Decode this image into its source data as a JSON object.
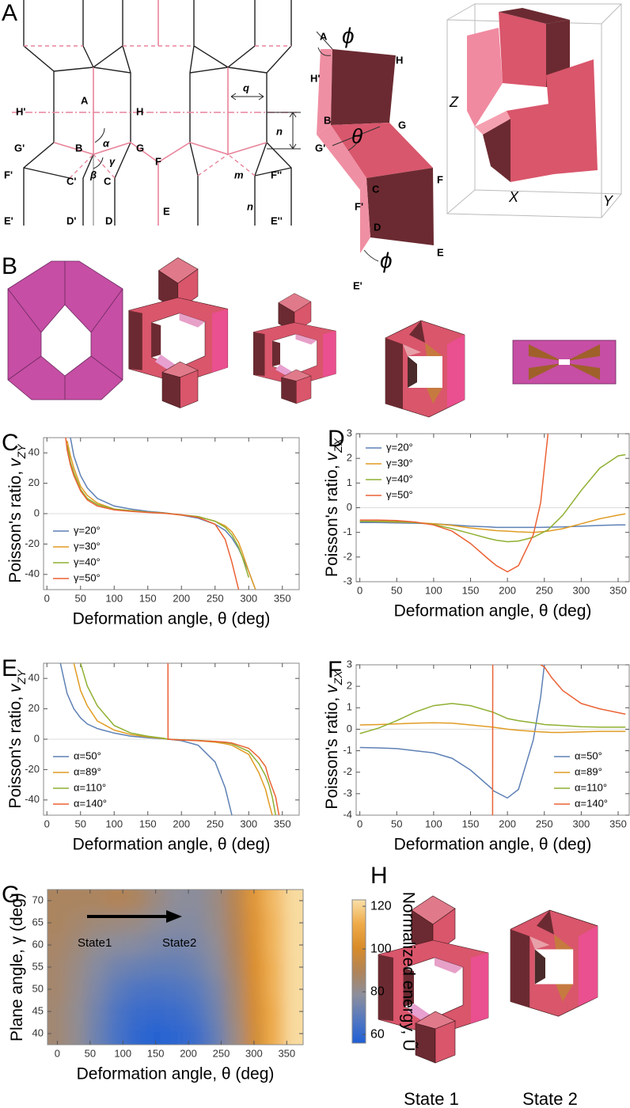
{
  "panel_letters": [
    "A",
    "B",
    "H"
  ],
  "panel_A": {
    "schematic_labels": [
      "A",
      "H'",
      "H",
      "G'",
      "B",
      "G",
      "F'",
      "C'",
      "C",
      "F",
      "F''",
      "E'",
      "D'",
      "D",
      "E",
      "E''",
      "q",
      "n",
      "m",
      "n",
      "α",
      "β",
      "γ"
    ],
    "fold_labels": [
      "A",
      "ϕ",
      "H",
      "H'",
      "B",
      "G",
      "G'",
      "θ",
      "F",
      "C",
      "F'",
      "D",
      "E",
      "ϕ",
      "E'"
    ],
    "axis_labels": [
      "Z",
      "X",
      "Y"
    ]
  },
  "panel_H": {
    "labels": [
      "State 1",
      "State 2"
    ]
  },
  "chart_data": [
    {
      "type": "line",
      "panel": "C",
      "x_label": "Deformation angle, θ (deg)",
      "y_label": "Poisson's ratio,",
      "y_label_var": "v",
      "y_label_sub": "ZY",
      "xlim": [
        -5,
        375
      ],
      "ylim": [
        -50,
        50
      ],
      "xticks": [
        0,
        50,
        100,
        150,
        200,
        250,
        300,
        350
      ],
      "yticks": [
        -40,
        -20,
        0,
        20,
        40
      ],
      "zero_line": true,
      "legend": "lower left",
      "x": [
        28,
        30,
        35,
        40,
        50,
        60,
        75,
        100,
        125,
        150,
        175,
        200,
        225,
        250,
        265,
        275,
        285,
        290,
        300,
        310
      ],
      "series": [
        {
          "name": "γ=20°",
          "color": "#5e81b5",
          "values": [
            null,
            null,
            50,
            38,
            25,
            17,
            10,
            5,
            3,
            1.5,
            0.5,
            -1,
            -3,
            -7,
            -11,
            -16,
            -23,
            -28,
            -38,
            -50
          ]
        },
        {
          "name": "γ=30°",
          "color": "#e19c24",
          "values": [
            null,
            48,
            38,
            30,
            18,
            12,
            7,
            3,
            2,
            1,
            0.3,
            -1,
            -2,
            -5,
            -8,
            -12,
            -19,
            -25,
            -38,
            -50
          ]
        },
        {
          "name": "γ=40°",
          "color": "#8fb032",
          "values": [
            null,
            45,
            34,
            27,
            16,
            10,
            6,
            3,
            2,
            1,
            0.3,
            -0.8,
            -2,
            -5,
            -9,
            -14,
            -22,
            -28,
            -42,
            null
          ]
        },
        {
          "name": "γ=50°",
          "color": "#eb6235",
          "values": [
            50,
            42,
            32,
            25,
            15,
            9,
            5,
            2.5,
            1.5,
            0.8,
            0.2,
            -0.8,
            -2.5,
            -7,
            -17,
            -32,
            -50,
            null,
            null,
            null
          ]
        }
      ]
    },
    {
      "type": "line",
      "panel": "D",
      "x_label": "Deformation angle, θ (deg)",
      "y_label": "Poisson's ratio,",
      "y_label_var": "v",
      "y_label_sub": "ZX",
      "xlim": [
        -5,
        365
      ],
      "ylim": [
        -3,
        3
      ],
      "xticks": [
        0,
        50,
        100,
        150,
        200,
        250,
        300,
        350
      ],
      "yticks": [
        -3,
        -2,
        -1,
        0,
        1,
        2,
        3
      ],
      "zero_line": true,
      "legend": "upper left",
      "x": [
        0,
        25,
        50,
        75,
        100,
        125,
        150,
        175,
        185,
        200,
        215,
        235,
        245,
        255,
        275,
        300,
        325,
        350,
        360
      ],
      "series": [
        {
          "name": "γ=20°",
          "color": "#5e81b5",
          "values": [
            -0.6,
            -0.6,
            -0.62,
            -0.63,
            -0.65,
            -0.7,
            -0.75,
            -0.78,
            -0.8,
            -0.8,
            -0.8,
            -0.8,
            -0.8,
            -0.79,
            -0.78,
            -0.75,
            -0.72,
            -0.7,
            -0.7
          ]
        },
        {
          "name": "γ=30°",
          "color": "#e19c24",
          "values": [
            -0.55,
            -0.56,
            -0.58,
            -0.6,
            -0.65,
            -0.72,
            -0.82,
            -0.9,
            -0.93,
            -0.95,
            -0.98,
            -1.0,
            -0.98,
            -0.95,
            -0.85,
            -0.65,
            -0.45,
            -0.3,
            -0.25
          ]
        },
        {
          "name": "γ=40°",
          "color": "#8fb032",
          "values": [
            -0.55,
            -0.55,
            -0.56,
            -0.6,
            -0.68,
            -0.85,
            -1.05,
            -1.25,
            -1.32,
            -1.38,
            -1.35,
            -1.2,
            -1.05,
            -0.9,
            -0.3,
            0.7,
            1.6,
            2.1,
            2.15
          ]
        },
        {
          "name": "γ=50°",
          "color": "#eb6235",
          "values": [
            -0.5,
            -0.5,
            -0.52,
            -0.58,
            -0.7,
            -0.95,
            -1.45,
            -2.1,
            -2.35,
            -2.6,
            -2.35,
            -1.1,
            0.2,
            3,
            null,
            null,
            null,
            null,
            null
          ]
        }
      ]
    },
    {
      "type": "line",
      "panel": "E",
      "x_label": "Deformation angle, θ (deg)",
      "y_label": "Poisson's ratio,",
      "y_label_var": "v",
      "y_label_sub": "ZY",
      "xlim": [
        -5,
        375
      ],
      "ylim": [
        -50,
        50
      ],
      "xticks": [
        0,
        50,
        100,
        150,
        200,
        250,
        300,
        350
      ],
      "yticks": [
        -40,
        -20,
        0,
        20,
        40
      ],
      "zero_line": true,
      "legend": "lower left",
      "x": [
        20,
        30,
        40,
        50,
        60,
        75,
        100,
        125,
        150,
        175,
        179.9,
        180.1,
        200,
        225,
        250,
        265,
        275,
        300,
        315,
        325,
        330,
        335,
        340,
        345
      ],
      "series": [
        {
          "name": "α=50°",
          "color": "#5e81b5",
          "values": [
            50,
            30,
            20,
            14,
            10,
            7,
            4,
            2,
            1,
            0.2,
            0,
            0,
            -1,
            -4,
            -15,
            -32,
            -50,
            null,
            null,
            null,
            null,
            null,
            null,
            null
          ]
        },
        {
          "name": "α=89°",
          "color": "#e19c24",
          "values": [
            null,
            null,
            50,
            32,
            22,
            12,
            6,
            3,
            1.5,
            0.3,
            0,
            0,
            -0.5,
            -1,
            -2,
            -3,
            -4,
            -10,
            -22,
            -33,
            -42,
            -50,
            null,
            null
          ]
        },
        {
          "name": "α=110°",
          "color": "#8fb032",
          "values": [
            null,
            null,
            null,
            50,
            35,
            22,
            9,
            4,
            2,
            0.5,
            0,
            0,
            -0.4,
            -0.8,
            -1.5,
            -2.3,
            -3,
            -8,
            -16,
            -24,
            -30,
            -38,
            -50,
            null
          ]
        },
        {
          "name": "α=140°",
          "color": "#eb6235",
          "values": [
            null,
            null,
            null,
            null,
            null,
            null,
            null,
            null,
            null,
            null,
            50,
            0,
            -0.5,
            -1,
            -1.5,
            -2,
            -2.5,
            -6,
            -12,
            -18,
            -26,
            -32,
            -38,
            -50
          ]
        }
      ]
    },
    {
      "type": "line",
      "panel": "F",
      "x_label": "Deformation angle, θ (deg)",
      "y_label": "Poisson's ratio,",
      "y_label_var": "v",
      "y_label_sub": "ZX",
      "xlim": [
        -5,
        365
      ],
      "ylim": [
        -4,
        3
      ],
      "xticks": [
        0,
        50,
        100,
        150,
        200,
        250,
        300,
        350
      ],
      "yticks": [
        -4,
        -3,
        -2,
        -1,
        0,
        1,
        2,
        3
      ],
      "zero_line": true,
      "legend": "lower right",
      "x": [
        0,
        25,
        50,
        75,
        100,
        125,
        150,
        179.9,
        180.1,
        200,
        215,
        235,
        245,
        250,
        260,
        275,
        300,
        325,
        360
      ],
      "series": [
        {
          "name": "α=50°",
          "color": "#5e81b5",
          "values": [
            -0.85,
            -0.87,
            -0.9,
            -1.0,
            -1.1,
            -1.35,
            -1.9,
            -2.8,
            -2.85,
            -3.2,
            -2.8,
            -0.5,
            1.5,
            3,
            null,
            null,
            null,
            null,
            null
          ]
        },
        {
          "name": "α=89°",
          "color": "#e19c24",
          "values": [
            0.2,
            0.22,
            0.25,
            0.28,
            0.3,
            0.28,
            0.2,
            0.1,
            0.1,
            0,
            -0.05,
            -0.1,
            -0.12,
            -0.13,
            -0.15,
            -0.15,
            -0.12,
            -0.1,
            -0.1
          ]
        },
        {
          "name": "α=110°",
          "color": "#8fb032",
          "values": [
            -0.2,
            0.05,
            0.4,
            0.8,
            1.1,
            1.2,
            1.1,
            0.8,
            0.8,
            0.5,
            0.4,
            0.3,
            0.25,
            0.22,
            0.2,
            0.17,
            0.12,
            0.1,
            0.1
          ]
        },
        {
          "name": "α=140°",
          "color": "#eb6235",
          "values": [
            null,
            null,
            null,
            null,
            null,
            null,
            null,
            -4,
            3,
            null,
            null,
            null,
            3,
            2.9,
            2.4,
            1.8,
            1.2,
            0.95,
            0.7
          ]
        }
      ]
    },
    {
      "type": "contour",
      "panel": "G",
      "x_label": "Deformation angle, θ (deg)",
      "y_label": "Plane angle, γ (deg)",
      "colorbar_label": "Normalized energy, Ũ",
      "xlim": [
        -15,
        375
      ],
      "ylim": [
        37.5,
        72.5
      ],
      "xticks": [
        0,
        50,
        100,
        150,
        200,
        250,
        300,
        350
      ],
      "yticks": [
        40,
        45,
        50,
        55,
        60,
        65,
        70
      ],
      "zlim": [
        56,
        123
      ],
      "zticks": [
        60,
        80,
        100,
        120
      ],
      "colormap": [
        "#1f5fd6",
        "#5478c0",
        "#8c8e9c",
        "#b08458",
        "#d98c2a",
        "#efab4a",
        "#f9e0a8"
      ],
      "annotations": [
        "State1",
        "State2"
      ],
      "x": [
        0,
        30,
        60,
        90,
        120,
        150,
        180,
        210,
        240,
        270,
        300,
        330,
        360
      ],
      "y": [
        40,
        45,
        50,
        55,
        60,
        65,
        70
      ],
      "z": [
        [
          85,
          80,
          72,
          65,
          60,
          58,
          59,
          62,
          70,
          82,
          98,
          112,
          122
        ],
        [
          85,
          80,
          73,
          66,
          62,
          61,
          62,
          65,
          72,
          84,
          99,
          112,
          122
        ],
        [
          86,
          81,
          75,
          69,
          66,
          65,
          66,
          68,
          74,
          85,
          100,
          113,
          122
        ],
        [
          86,
          82,
          77,
          73,
          71,
          70,
          70,
          72,
          77,
          87,
          101,
          113,
          122
        ],
        [
          87,
          84,
          80,
          78,
          77,
          75,
          74,
          75,
          79,
          89,
          102,
          114,
          122
        ],
        [
          88,
          86,
          84,
          83,
          82,
          79,
          77,
          77,
          81,
          90,
          103,
          114,
          122
        ],
        [
          88,
          88,
          88,
          90,
          88,
          83,
          79,
          78,
          82,
          91,
          104,
          115,
          122
        ]
      ]
    }
  ]
}
